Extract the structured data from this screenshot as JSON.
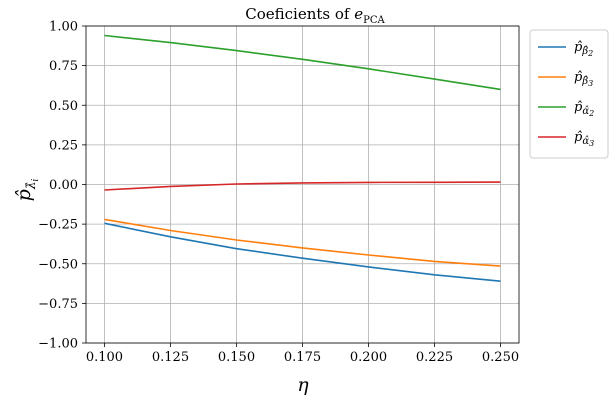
{
  "chart_data": {
    "type": "line",
    "title": "Coeficients of ē_PCA",
    "title_parts": {
      "base": "Coeficients of ",
      "symbol": "e",
      "subscript": "PCA"
    },
    "xlabel": "η",
    "ylabel": "p̂_λ̂i",
    "xlim": [
      0.093,
      0.257
    ],
    "ylim": [
      -1.0,
      1.0
    ],
    "x_ticks": [
      "0.100",
      "0.125",
      "0.150",
      "0.175",
      "0.200",
      "0.225",
      "0.250"
    ],
    "y_ticks": [
      "1.00",
      "0.75",
      "0.50",
      "0.25",
      "0.00",
      "−0.25",
      "−0.50",
      "−0.75",
      "−1.00"
    ],
    "grid": true,
    "legend_position": "outside-right-top",
    "x": [
      0.1,
      0.125,
      0.15,
      0.175,
      0.2,
      0.225,
      0.25
    ],
    "series": [
      {
        "name": "p̂_β̂2",
        "color": "#1f77b4",
        "values": [
          -0.245,
          -0.33,
          -0.405,
          -0.465,
          -0.52,
          -0.57,
          -0.61
        ]
      },
      {
        "name": "p̂_β̂3",
        "color": "#ff7f0e",
        "values": [
          -0.22,
          -0.29,
          -0.35,
          -0.4,
          -0.445,
          -0.485,
          -0.515
        ]
      },
      {
        "name": "p̂_α̂2",
        "color": "#2ca02c",
        "values": [
          0.94,
          0.895,
          0.845,
          0.79,
          0.73,
          0.665,
          0.6
        ]
      },
      {
        "name": "p̂_α̂3",
        "color": "#d62728",
        "values": [
          -0.035,
          -0.012,
          0.003,
          0.01,
          0.013,
          0.014,
          0.015
        ]
      }
    ],
    "legend_labels": [
      {
        "base": "p̂",
        "sub": "β̂",
        "subsub": "2"
      },
      {
        "base": "p̂",
        "sub": "β̂",
        "subsub": "3"
      },
      {
        "base": "p̂",
        "sub": "α̂",
        "subsub": "2"
      },
      {
        "base": "p̂",
        "sub": "α̂",
        "subsub": "3"
      }
    ]
  }
}
